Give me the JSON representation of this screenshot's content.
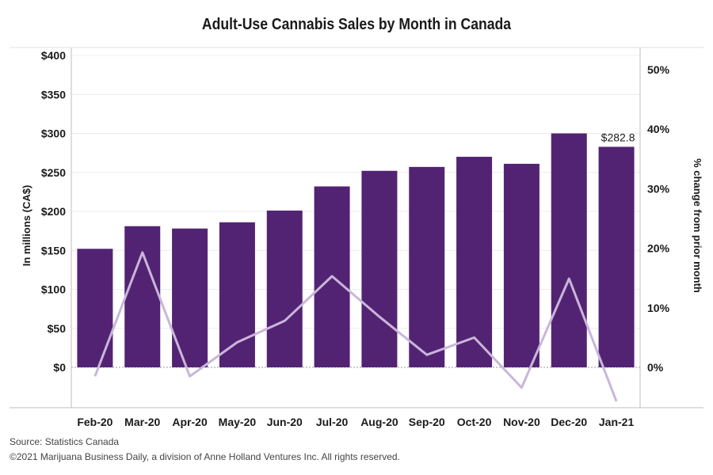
{
  "chart_data": {
    "type": "bar",
    "title": "Adult-Use Cannabis Sales by Month in Canada",
    "xlabel": "",
    "ylabel": "In millions (CA$)",
    "y2label": "% change from prior month",
    "categories": [
      "Feb-20",
      "Mar-20",
      "Apr-20",
      "May-20",
      "Jun-20",
      "Jul-20",
      "Aug-20",
      "Sep-20",
      "Oct-20",
      "Nov-20",
      "Dec-20",
      "Jan-21"
    ],
    "series": [
      {
        "type": "bar",
        "axis": "left",
        "color": "#532373",
        "values": [
          152,
          181,
          178,
          186,
          201,
          232,
          252,
          257,
          270,
          261,
          300,
          282.8
        ]
      },
      {
        "type": "line",
        "axis": "right",
        "color": "#c9b6d9",
        "values": [
          -1.5,
          19.3,
          -1.5,
          4.2,
          7.8,
          15.3,
          8.5,
          2.1,
          5.0,
          -3.4,
          14.9,
          -5.7
        ]
      }
    ],
    "ylim": [
      0,
      400
    ],
    "y_ticks": [
      0,
      50,
      100,
      150,
      200,
      250,
      300,
      350,
      400
    ],
    "y_tick_labels": [
      "$0",
      "$50",
      "$100",
      "$150",
      "$200",
      "$250",
      "$300",
      "$350",
      "$400"
    ],
    "y2lim": [
      0,
      50
    ],
    "y2_ticks": [
      0,
      10,
      20,
      30,
      40,
      50
    ],
    "y2_tick_labels": [
      "0%",
      "10%",
      "20%",
      "30%",
      "40%",
      "50%"
    ],
    "data_labels": [
      {
        "index": 11,
        "text": "$282.8"
      }
    ],
    "grid": true
  },
  "footer": {
    "source": "Source: Statistics Canada",
    "copyright": "©2021 Marijuana Business Daily, a division of Anne Holland Ventures Inc. All rights reserved."
  }
}
